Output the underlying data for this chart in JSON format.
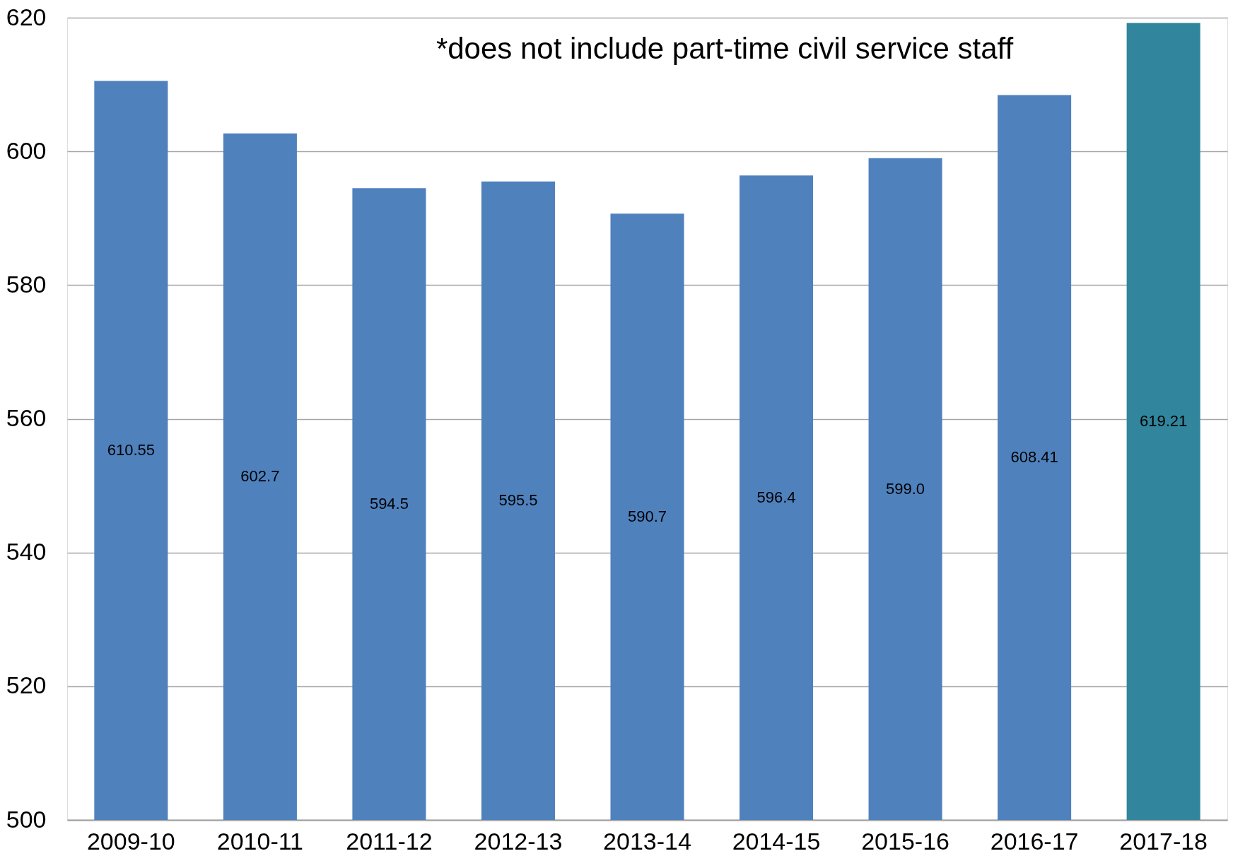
{
  "chart_data": {
    "type": "bar",
    "categories": [
      "2009-10",
      "2010-11",
      "2011-12",
      "2012-13",
      "2013-14",
      "2014-15",
      "2015-16",
      "2016-17",
      "2017-18"
    ],
    "values": [
      610.55,
      602.7,
      594.5,
      595.5,
      590.7,
      596.4,
      599.0,
      608.41,
      619.21
    ],
    "value_labels": [
      "610.55",
      "602.7",
      "594.5",
      "595.5",
      "590.7",
      "596.4",
      "599.0",
      "608.41",
      "619.21"
    ],
    "colors": [
      "#4f81bd",
      "#4f81bd",
      "#4f81bd",
      "#4f81bd",
      "#4f81bd",
      "#4f81bd",
      "#4f81bd",
      "#4f81bd",
      "#31859c"
    ],
    "ylim": [
      500,
      620
    ],
    "yticks": [
      500,
      520,
      540,
      560,
      580,
      600,
      620
    ],
    "grid": "y",
    "annotations": [
      "*does not include part-time civil service staff"
    ]
  }
}
